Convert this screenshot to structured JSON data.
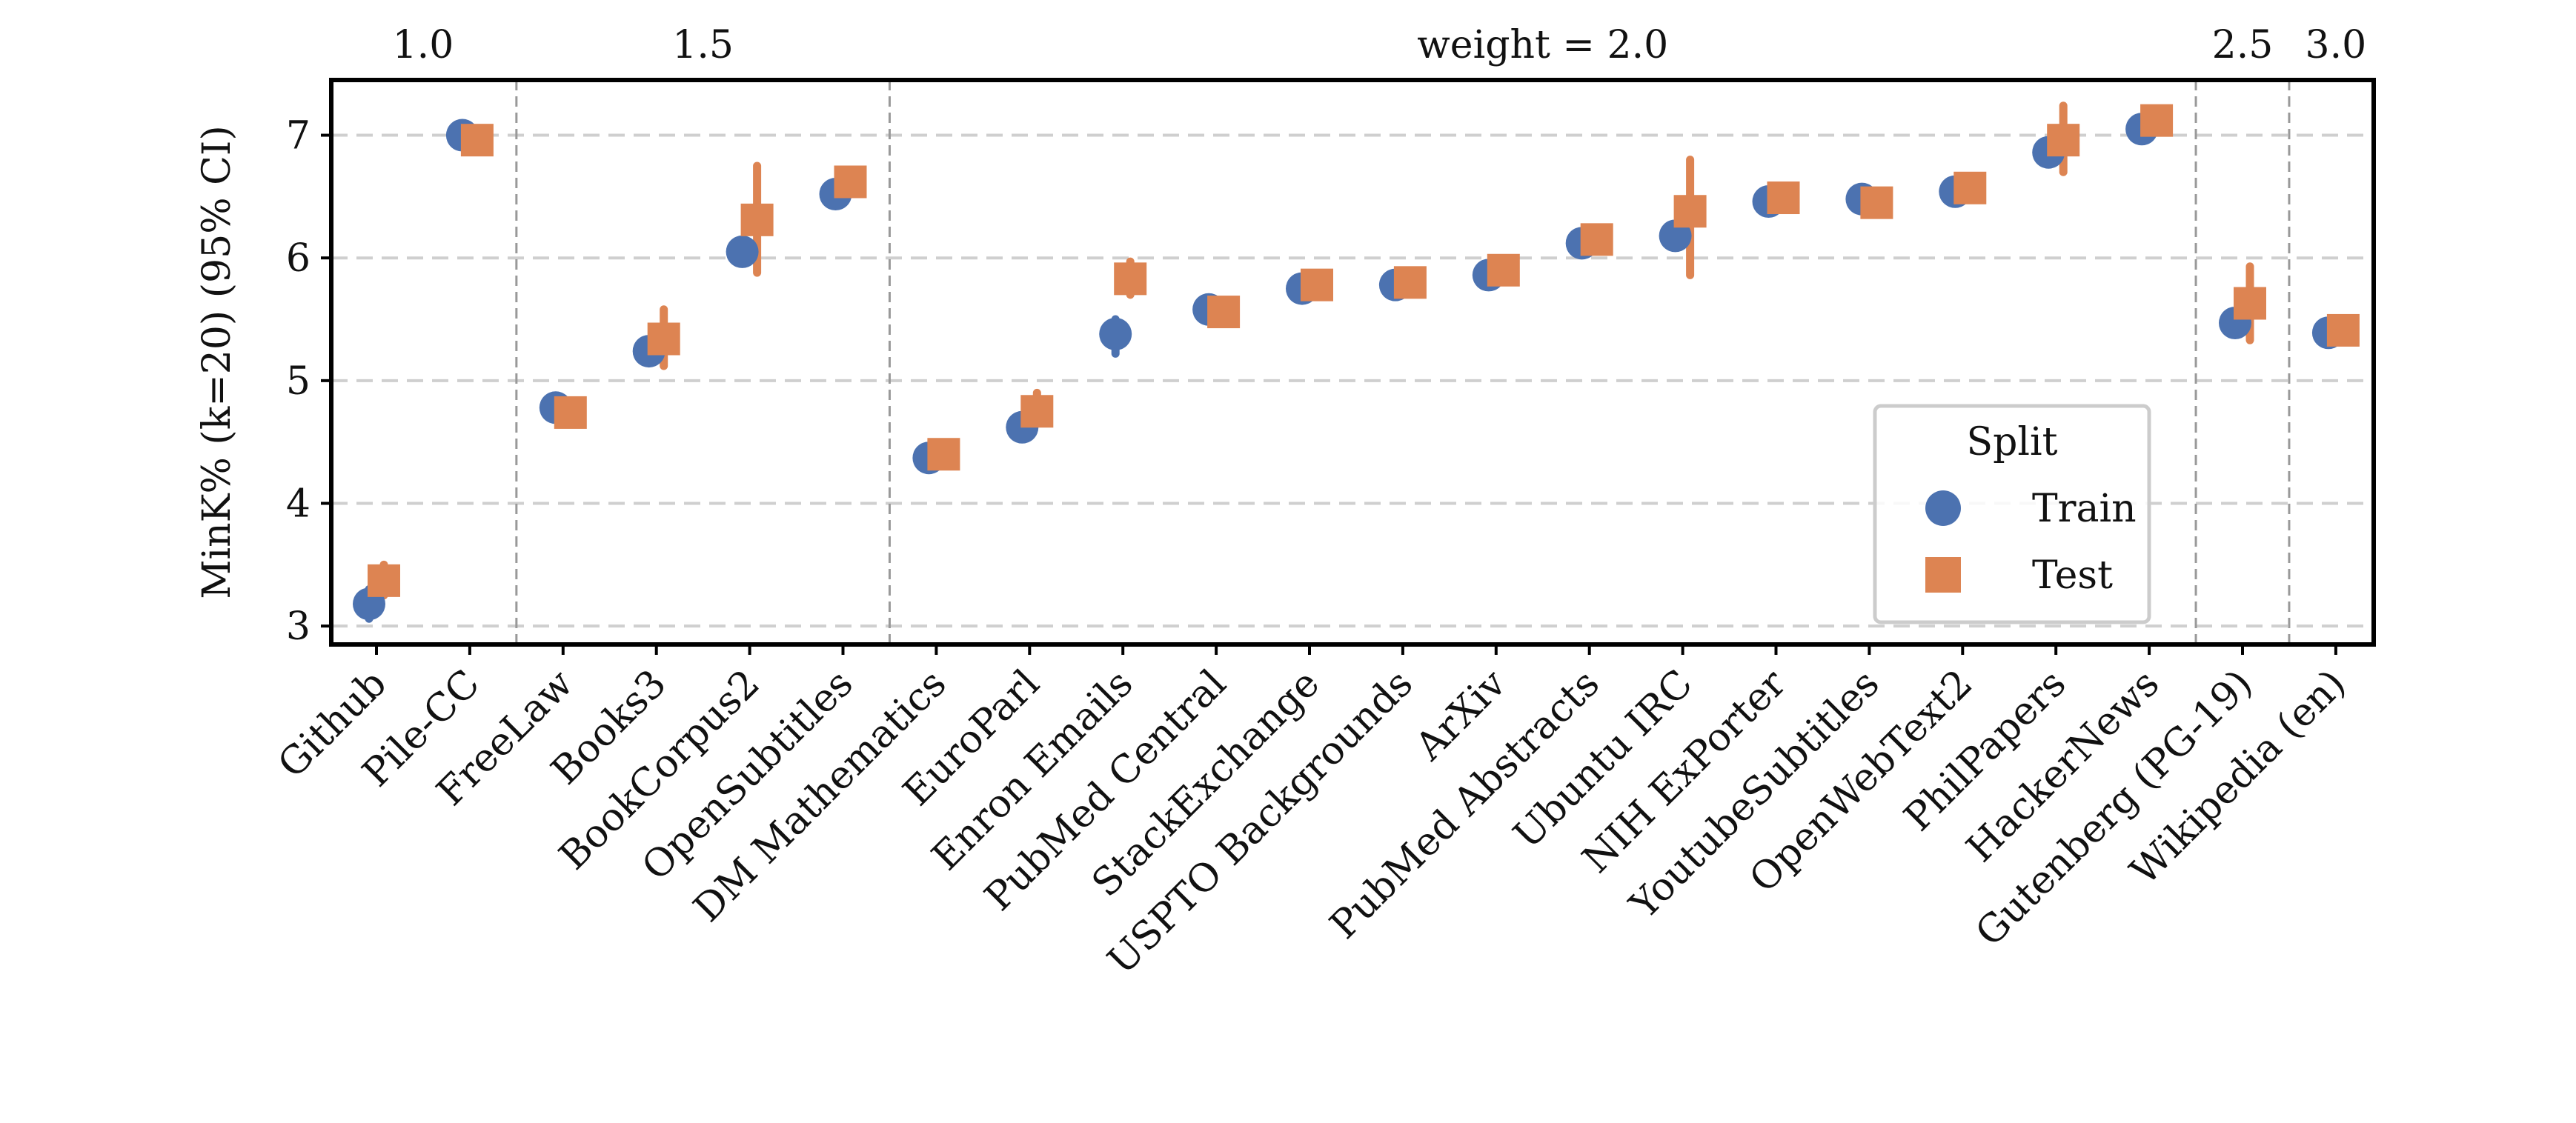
{
  "chart_data": {
    "type": "scatter",
    "ylabel": "MinK% (k=20) (95% CI)",
    "ylim": [
      2.85,
      7.45
    ],
    "yticks": [
      3,
      4,
      5,
      6,
      7
    ],
    "grid": "horizontal dashed",
    "categories": [
      "Github",
      "Pile-CC",
      "FreeLaw",
      "Books3",
      "BookCorpus2",
      "OpenSubtitles",
      "DM Mathematics",
      "EuroParl",
      "Enron Emails",
      "PubMed Central",
      "StackExchange",
      "USPTO Backgrounds",
      "ArXiv",
      "PubMed Abstracts",
      "Ubuntu IRC",
      "NIH ExPorter",
      "YoutubeSubtitles",
      "OpenWebText2",
      "PhilPapers",
      "HackerNews",
      "Gutenberg (PG-19)",
      "Wikipedia (en)"
    ],
    "groups": [
      {
        "label": "1.0",
        "start": 0,
        "end": 1
      },
      {
        "label": "1.5",
        "start": 2,
        "end": 5
      },
      {
        "label": "weight = 2.0",
        "start": 6,
        "end": 19
      },
      {
        "label": "2.5",
        "start": 20,
        "end": 20
      },
      {
        "label": "3.0",
        "start": 21,
        "end": 21
      }
    ],
    "series": [
      {
        "name": "Train",
        "marker": "circle",
        "color": "#4c72b0",
        "values": [
          3.18,
          7.0,
          4.78,
          5.24,
          6.05,
          6.52,
          4.37,
          4.62,
          5.38,
          5.58,
          5.75,
          5.78,
          5.86,
          6.12,
          6.18,
          6.46,
          6.48,
          6.54,
          6.86,
          7.05,
          5.47,
          5.39
        ],
        "ci_low": [
          3.06,
          6.98,
          4.76,
          5.18,
          6.0,
          6.5,
          4.35,
          4.6,
          5.22,
          5.56,
          5.73,
          5.76,
          5.84,
          6.1,
          6.15,
          6.44,
          6.46,
          6.52,
          6.82,
          7.03,
          5.44,
          5.37
        ],
        "ci_high": [
          3.3,
          7.02,
          4.8,
          5.3,
          6.1,
          6.54,
          4.39,
          4.64,
          5.5,
          5.6,
          5.77,
          5.8,
          5.88,
          6.14,
          6.21,
          6.48,
          6.5,
          6.56,
          6.9,
          7.07,
          5.5,
          5.41
        ]
      },
      {
        "name": "Test",
        "marker": "square",
        "color": "#dd8452",
        "values": [
          3.37,
          6.96,
          4.74,
          5.34,
          6.31,
          6.62,
          4.4,
          4.75,
          5.83,
          5.56,
          5.78,
          5.8,
          5.9,
          6.15,
          6.38,
          6.49,
          6.45,
          6.57,
          6.96,
          7.12,
          5.63,
          5.41
        ],
        "ci_low": [
          3.25,
          6.94,
          4.72,
          5.12,
          5.88,
          6.6,
          4.37,
          4.65,
          5.7,
          5.54,
          5.76,
          5.78,
          5.87,
          6.13,
          5.86,
          6.47,
          6.37,
          6.55,
          6.7,
          7.1,
          5.33,
          5.39
        ],
        "ci_high": [
          3.5,
          6.98,
          4.76,
          5.58,
          6.75,
          6.64,
          4.43,
          4.9,
          5.97,
          5.58,
          5.8,
          5.82,
          5.93,
          6.17,
          6.8,
          6.51,
          6.53,
          6.59,
          7.24,
          7.14,
          5.93,
          5.43
        ]
      }
    ],
    "legend": {
      "title": "Split",
      "entries": [
        "Train",
        "Test"
      ],
      "location": "lower right"
    }
  }
}
